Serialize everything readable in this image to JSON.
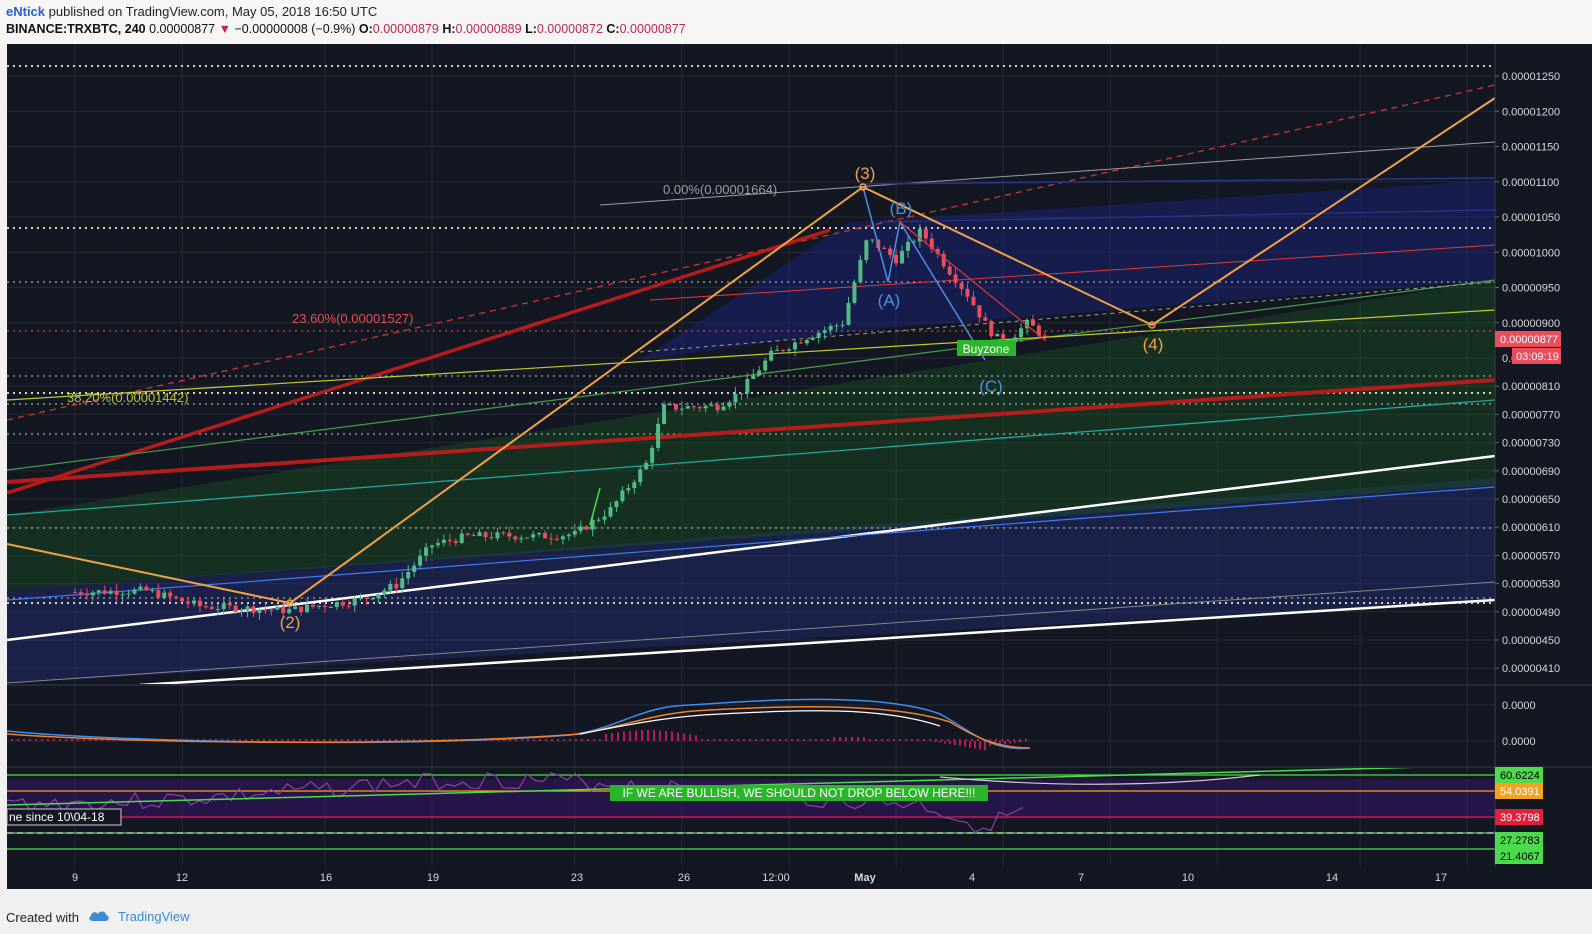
{
  "header": {
    "author": "eNtick",
    "published": "published on TradingView.com, May 05, 2018 16:50 UTC",
    "symbol": "BINANCE:TRXBTC, 240",
    "last": "0.00000877",
    "change": "−0.00000008 (−0.9%)",
    "o_label": "O:",
    "o": "0.00000879",
    "h_label": "H:",
    "h": "0.00000889",
    "l_label": "L:",
    "l": "0.00000872",
    "c_label": "C:",
    "c": "0.00000877"
  },
  "footer": {
    "created": "Created with",
    "brand": "TradingView"
  },
  "colors": {
    "background": "#131722",
    "candle_up": "#53b987",
    "candle_down": "#eb4d5c",
    "orange": "#f2a244",
    "red_trend": "#b71c1c",
    "white_trend": "#ffffff",
    "rsi_line": "#8e3fa8",
    "macd_line": "#3c8ff0",
    "signal_line": "#f0812c"
  },
  "chart_data": {
    "type": "candlestick",
    "y_axis_ticks": [
      "0.00001250",
      "0.00001200",
      "0.00001150",
      "0.00001100",
      "0.00001050",
      "0.00001000",
      "0.00000950",
      "0.00000900",
      "0.00000850",
      "0.00000810",
      "0.00000770",
      "0.00000730",
      "0.00000690",
      "0.00000650",
      "0.00000610",
      "0.00000570",
      "0.00000530",
      "0.00000490",
      "0.00000450",
      "0.00000410"
    ],
    "x_axis_ticks": [
      "9",
      "12",
      "16",
      "19",
      "23",
      "26",
      "12:00",
      "May",
      "4",
      "7",
      "10",
      "14",
      "17"
    ],
    "last_price_label": "0.00000877",
    "countdown_label": "03:09:19",
    "annotations": {
      "fib_0": "0.00%(0.00001664)",
      "fib_236": "23.60%(0.00001527)",
      "fib_382": "38.20%(0.00001442)",
      "wave_2": "(2)",
      "wave_3": "(3)",
      "wave_4": "(4)",
      "wave_a": "(A)",
      "wave_b": "(B)",
      "wave_c": "(C)",
      "buyzone": "Buyzone",
      "rsi_note": "IF WE ARE BULLISH, WE SHOULD NOT DROP BELOW HERE!!!",
      "rsi_line_note": "ne since 10\\04-18"
    },
    "macd_axis_ticks": [
      "0.0000",
      "0.0000"
    ],
    "rsi_levels": [
      "60.6224",
      "54.0391",
      "39.3798",
      "27.2783",
      "21.4067"
    ],
    "rsi_level_colors": [
      "#4cdb4c",
      "#f7a21b",
      "#e0203a",
      "#4cdb4c",
      "#4cdb4c"
    ]
  }
}
